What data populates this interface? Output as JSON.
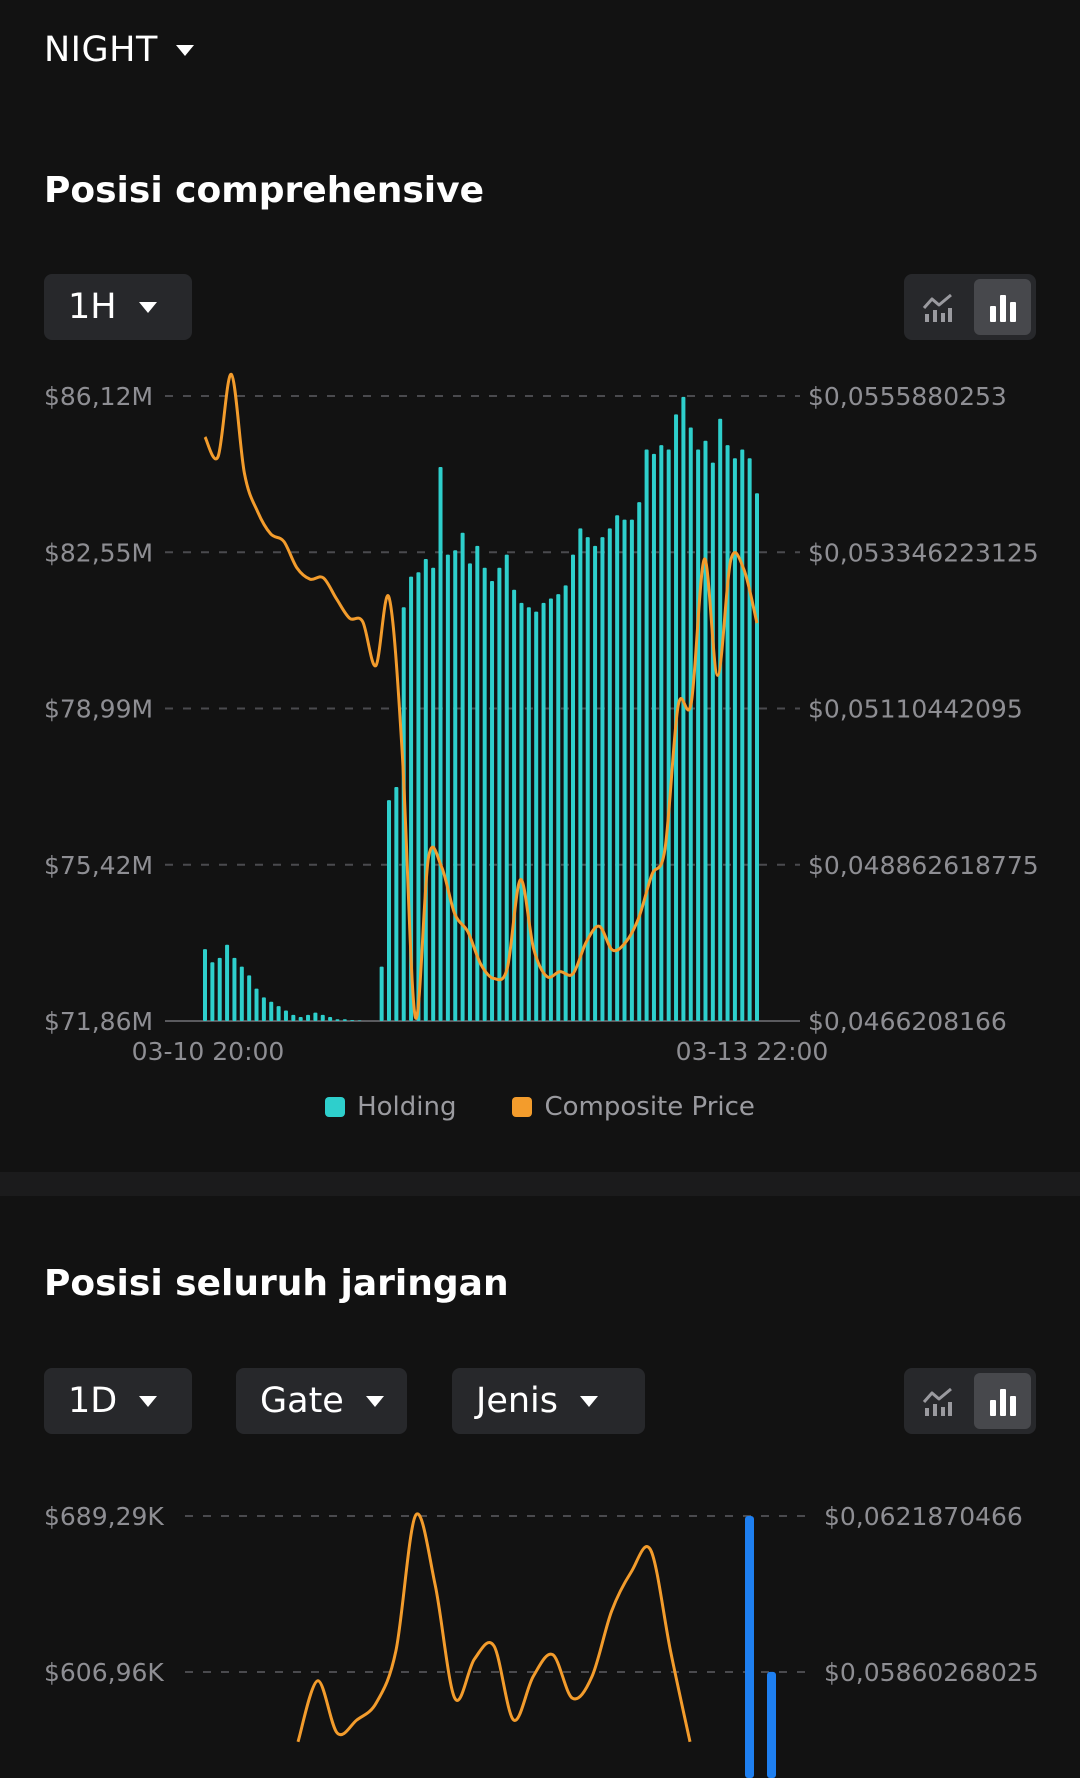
{
  "token": {
    "label": "NIGHT"
  },
  "section1": {
    "title": "Posisi comprehensive",
    "interval": "1H",
    "y_left_ticks": [
      "$86,12M",
      "$82,55M",
      "$78,99M",
      "$75,42M",
      "$71,86M"
    ],
    "y_right_ticks": [
      "$0,0555880253",
      "$0,053346223125",
      "$0,05110442095",
      "$0,048862618775",
      "$0,0466208166"
    ],
    "x_ticks": [
      "03-10 20:00",
      "03-13 22:00"
    ],
    "legend": [
      {
        "label": "Holding",
        "color": "#2ecfcc"
      },
      {
        "label": "Composite Price",
        "color": "#f39c2c"
      }
    ]
  },
  "section2": {
    "title": "Posisi seluruh jaringan",
    "interval": "1D",
    "exchange": "Gate",
    "type_filter": "Jenis",
    "y_left_ticks": [
      "$689,29K",
      "$606,96K"
    ],
    "y_right_ticks": [
      "$0,0621870466",
      "$0,05860268025"
    ]
  },
  "colors": {
    "holding": "#2ecfcc",
    "price": "#f39c2c",
    "bar_blue": "#1e7ff0",
    "grid": "#4a4a4e"
  },
  "chart_data": [
    {
      "type": "bar",
      "title": "Posisi comprehensive",
      "x_range": [
        "03-10 20:00",
        "03-13 22:00"
      ],
      "ylim_left": [
        71.86,
        86.12
      ],
      "ylim_right": [
        0.0466208166,
        0.0555880253
      ],
      "grid": true,
      "legend_position": "bottom",
      "series": [
        {
          "name": "Holding",
          "axis": "left",
          "unit": "$M",
          "values": [
            73.5,
            73.2,
            73.3,
            73.6,
            73.3,
            73.1,
            72.9,
            72.6,
            72.4,
            72.3,
            72.2,
            72.1,
            72.0,
            71.95,
            72.0,
            72.05,
            72.0,
            71.95,
            71.9,
            71.9,
            71.88,
            71.87,
            71.86,
            71.86,
            73.1,
            76.9,
            77.2,
            81.3,
            82.0,
            82.1,
            82.4,
            82.2,
            84.5,
            82.5,
            82.6,
            83.0,
            82.3,
            82.7,
            82.2,
            81.9,
            82.2,
            82.5,
            81.7,
            81.4,
            81.3,
            81.2,
            81.4,
            81.5,
            81.6,
            81.8,
            82.5,
            83.1,
            82.9,
            82.7,
            82.9,
            83.1,
            83.4,
            83.3,
            83.3,
            83.7,
            84.9,
            84.8,
            85.0,
            84.9,
            85.7,
            86.1,
            85.4,
            84.9,
            85.1,
            84.6,
            85.6,
            85.0,
            84.7,
            84.9,
            84.7,
            83.9
          ]
        },
        {
          "name": "Composite Price",
          "axis": "right",
          "unit": "$",
          "values": [
            0.055,
            0.05472,
            0.0559,
            0.05448,
            0.05393,
            0.05361,
            0.0535,
            0.05312,
            0.05296,
            0.05298,
            0.05268,
            0.0524,
            0.05235,
            0.05172,
            0.0527,
            0.0505,
            0.04668,
            0.04896,
            0.04883,
            0.04816,
            0.0479,
            0.04743,
            0.04723,
            0.04738,
            0.04865,
            0.04766,
            0.04726,
            0.04733,
            0.0473,
            0.04775,
            0.04798,
            0.04764,
            0.04775,
            0.0481,
            0.04872,
            0.04909,
            0.05114,
            0.05119,
            0.05325,
            0.05158,
            0.05323,
            0.0531,
            0.05233
          ]
        }
      ]
    },
    {
      "type": "bar",
      "title": "Posisi seluruh jaringan",
      "ylim_left_visible_ticks": [
        606.96,
        689.29
      ],
      "ylim_right_visible_ticks": [
        0.05860268025,
        0.0621870466
      ],
      "grid": true,
      "series": [
        {
          "name": "",
          "axis": "right",
          "values": [
            0.057,
            0.0584,
            0.0572,
            0.0575,
            0.0579,
            0.0591,
            0.0622,
            0.0606,
            0.058,
            0.0589,
            0.0592,
            0.0575,
            0.0585,
            0.059,
            0.058,
            0.0585,
            0.06,
            0.0609,
            0.0614,
            0.0591,
            0.057
          ]
        },
        {
          "name": "",
          "axis": "left",
          "unit": "$K",
          "values": [
            689.29,
            607.0
          ]
        }
      ]
    }
  ]
}
